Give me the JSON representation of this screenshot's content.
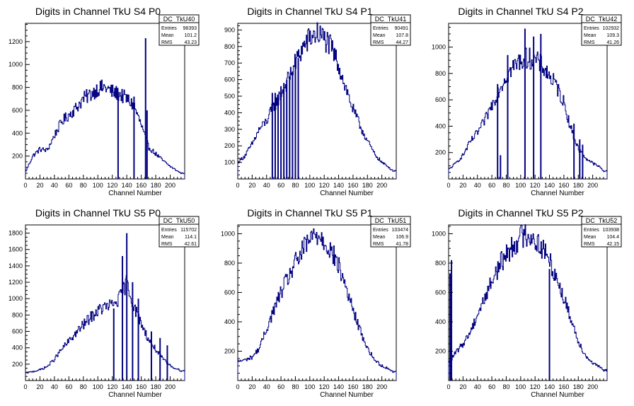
{
  "chart_data": [
    {
      "type": "histogram",
      "title": "Digits in Channel TkU S4 P0",
      "xlabel": "Channel Number",
      "ylabel": "",
      "xlim": [
        0,
        220
      ],
      "ylim": [
        0,
        1360
      ],
      "xticks": [
        0,
        20,
        40,
        60,
        80,
        100,
        120,
        140,
        160,
        180,
        200
      ],
      "yticks": [
        200,
        400,
        600,
        800,
        1000,
        1200
      ],
      "stats": {
        "name": "DC_TkU40",
        "entries": "98393",
        "mean": "101.2",
        "rms": "43.23"
      },
      "x": [
        0,
        10,
        20,
        30,
        40,
        50,
        60,
        70,
        80,
        90,
        100,
        110,
        120,
        130,
        140,
        150,
        160,
        170,
        180,
        190,
        200,
        210,
        215
      ],
      "values": [
        60,
        200,
        260,
        250,
        380,
        500,
        560,
        620,
        700,
        740,
        790,
        800,
        760,
        740,
        700,
        640,
        470,
        280,
        220,
        160,
        110,
        70,
        50
      ],
      "spikes": [
        [
          128,
          760
        ],
        [
          150,
          720
        ],
        [
          166,
          1230
        ],
        [
          168,
          600
        ]
      ]
    },
    {
      "type": "histogram",
      "title": "Digits in Channel TkU S4 P1",
      "xlabel": "Channel Number",
      "ylabel": "",
      "xlim": [
        0,
        220
      ],
      "ylim": [
        0,
        940
      ],
      "xticks": [
        0,
        20,
        40,
        60,
        80,
        100,
        120,
        140,
        160,
        180,
        200
      ],
      "yticks": [
        100,
        200,
        300,
        400,
        500,
        600,
        700,
        800,
        900
      ],
      "stats": {
        "name": "DC_TkU41",
        "entries": "90491",
        "mean": "107.8",
        "rms": "44.27"
      },
      "x": [
        0,
        10,
        20,
        30,
        40,
        50,
        60,
        70,
        80,
        90,
        100,
        110,
        120,
        130,
        140,
        150,
        160,
        170,
        180,
        190,
        200,
        210,
        215
      ],
      "values": [
        100,
        140,
        210,
        300,
        350,
        440,
        510,
        600,
        700,
        790,
        850,
        880,
        850,
        790,
        690,
        550,
        420,
        320,
        230,
        150,
        100,
        70,
        50
      ],
      "spikes": [
        [
          48,
          520
        ],
        [
          52,
          520
        ],
        [
          56,
          500
        ],
        [
          60,
          560
        ],
        [
          64,
          580
        ],
        [
          68,
          600
        ],
        [
          72,
          620
        ],
        [
          76,
          650
        ],
        [
          80,
          700
        ],
        [
          84,
          730
        ]
      ]
    },
    {
      "type": "histogram",
      "title": "Digits in Channel TkU S4 P2",
      "xlabel": "Channel Number",
      "ylabel": "",
      "xlim": [
        0,
        220
      ],
      "ylim": [
        0,
        1180
      ],
      "xticks": [
        0,
        20,
        40,
        60,
        80,
        100,
        120,
        140,
        160,
        180,
        200
      ],
      "yticks": [
        200,
        400,
        600,
        800,
        1000
      ],
      "stats": {
        "name": "DC_TkU42",
        "entries": "102932",
        "mean": "109.3",
        "rms": "41.26"
      },
      "x": [
        0,
        10,
        20,
        30,
        40,
        50,
        60,
        70,
        80,
        90,
        100,
        110,
        120,
        130,
        140,
        150,
        160,
        170,
        180,
        190,
        200,
        210,
        215
      ],
      "values": [
        70,
        120,
        180,
        280,
        350,
        440,
        560,
        680,
        780,
        850,
        900,
        920,
        900,
        860,
        780,
        700,
        580,
        380,
        230,
        160,
        120,
        90,
        60
      ],
      "spikes": [
        [
          68,
          720
        ],
        [
          72,
          180
        ],
        [
          82,
          940
        ],
        [
          106,
          1140
        ],
        [
          118,
          1080
        ],
        [
          128,
          1100
        ],
        [
          174,
          420
        ],
        [
          182,
          300
        ],
        [
          186,
          260
        ]
      ]
    },
    {
      "type": "histogram",
      "title": "Digits in Channel TkU S5 P0",
      "xlabel": "Channel Number",
      "ylabel": "",
      "xlim": [
        0,
        220
      ],
      "ylim": [
        0,
        1900
      ],
      "xticks": [
        0,
        20,
        40,
        60,
        80,
        100,
        120,
        140,
        160,
        180,
        200
      ],
      "yticks": [
        200,
        400,
        600,
        800,
        1000,
        1200,
        1400,
        1600,
        1800
      ],
      "stats": {
        "name": "DC_TkU50",
        "entries": "115702",
        "mean": "114.1",
        "rms": "42.61"
      },
      "x": [
        0,
        10,
        20,
        30,
        40,
        50,
        60,
        70,
        80,
        90,
        100,
        110,
        120,
        130,
        140,
        150,
        160,
        170,
        180,
        190,
        200,
        210,
        215
      ],
      "values": [
        90,
        110,
        130,
        170,
        260,
        380,
        480,
        580,
        680,
        770,
        850,
        900,
        920,
        1000,
        1200,
        900,
        700,
        500,
        380,
        260,
        180,
        140,
        120
      ],
      "spikes": [
        [
          122,
          880
        ],
        [
          134,
          1520
        ],
        [
          140,
          1800
        ],
        [
          148,
          1200
        ],
        [
          156,
          1000
        ],
        [
          174,
          600
        ],
        [
          186,
          520
        ],
        [
          196,
          430
        ]
      ]
    },
    {
      "type": "histogram",
      "title": "Digits in Channel TkU S5 P1",
      "xlabel": "Channel Number",
      "ylabel": "",
      "xlim": [
        0,
        220
      ],
      "ylim": [
        0,
        1060
      ],
      "xticks": [
        0,
        20,
        40,
        60,
        80,
        100,
        120,
        140,
        160,
        180,
        200
      ],
      "yticks": [
        200,
        400,
        600,
        800,
        1000
      ],
      "stats": {
        "name": "DC_TkU51",
        "entries": "103474",
        "mean": "106.9",
        "rms": "41.78"
      },
      "x": [
        0,
        10,
        20,
        30,
        40,
        50,
        60,
        70,
        80,
        90,
        100,
        110,
        120,
        130,
        140,
        150,
        160,
        170,
        180,
        190,
        200,
        210,
        215
      ],
      "values": [
        130,
        140,
        160,
        220,
        350,
        480,
        600,
        700,
        800,
        880,
        960,
        1000,
        960,
        880,
        780,
        640,
        480,
        340,
        220,
        140,
        100,
        80,
        60
      ],
      "spikes": []
    },
    {
      "type": "histogram",
      "title": "Digits in Channel TkU S5 P2",
      "xlabel": "Channel Number",
      "ylabel": "",
      "xlim": [
        0,
        220
      ],
      "ylim": [
        0,
        1060
      ],
      "xticks": [
        0,
        20,
        40,
        60,
        80,
        100,
        120,
        140,
        160,
        180,
        200
      ],
      "yticks": [
        200,
        400,
        600,
        800,
        1000
      ],
      "stats": {
        "name": "DC_TkU52",
        "entries": "103938",
        "mean": "104.4",
        "rms": "42.15"
      },
      "x": [
        0,
        10,
        20,
        30,
        40,
        50,
        60,
        70,
        80,
        90,
        100,
        110,
        120,
        130,
        140,
        150,
        160,
        170,
        180,
        190,
        200,
        210,
        215
      ],
      "values": [
        120,
        190,
        250,
        330,
        450,
        560,
        680,
        780,
        860,
        920,
        980,
        1000,
        960,
        900,
        820,
        700,
        560,
        420,
        270,
        170,
        120,
        90,
        70
      ],
      "spikes": [
        [
          2,
          730
        ],
        [
          4,
          820
        ],
        [
          140,
          760
        ]
      ]
    }
  ]
}
